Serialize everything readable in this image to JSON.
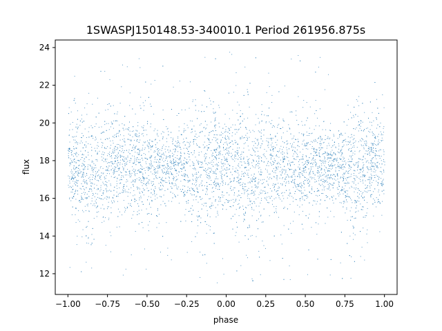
{
  "chart_data": {
    "type": "scatter",
    "title": "1SWASPJ150148.53-340010.1 Period 261956.875s",
    "xlabel": "phase",
    "ylabel": "flux",
    "xlim": [
      -1.08,
      1.08
    ],
    "ylim": [
      10.9,
      24.4
    ],
    "xticks": [
      -1.0,
      -0.75,
      -0.5,
      -0.25,
      0.0,
      0.25,
      0.5,
      0.75,
      1.0
    ],
    "xtick_labels": [
      "−1.00",
      "−0.75",
      "−0.50",
      "−0.25",
      "0.00",
      "0.25",
      "0.50",
      "0.75",
      "1.00"
    ],
    "yticks": [
      12,
      14,
      16,
      18,
      20,
      22,
      24
    ],
    "ytick_labels": [
      "12",
      "14",
      "16",
      "18",
      "20",
      "22",
      "24"
    ],
    "grid": false,
    "marker_color": "#1f77b4",
    "series": [
      {
        "x_range": [
          -1.0,
          1.0
        ],
        "y_center": 17.8,
        "y_spread": 1.2,
        "y_min": 11.5,
        "y_max": 23.8,
        "phase_profile": [
          {
            "x": -1.0,
            "y_low": 15.3,
            "y_high": 20.0
          },
          {
            "x": -0.85,
            "y_low": 13.5,
            "y_high": 21.0
          },
          {
            "x": -0.7,
            "y_low": 15.5,
            "y_high": 20.3
          },
          {
            "x": -0.5,
            "y_low": 14.5,
            "y_high": 20.5
          },
          {
            "x": -0.3,
            "y_low": 16.0,
            "y_high": 19.5
          },
          {
            "x": -0.2,
            "y_low": 13.5,
            "y_high": 21.0
          },
          {
            "x": -0.05,
            "y_low": 15.5,
            "y_high": 20.5
          },
          {
            "x": 0.15,
            "y_low": 13.5,
            "y_high": 21.0
          },
          {
            "x": 0.3,
            "y_low": 15.5,
            "y_high": 20.3
          },
          {
            "x": 0.5,
            "y_low": 14.5,
            "y_high": 20.5
          },
          {
            "x": 0.7,
            "y_low": 16.0,
            "y_high": 19.5
          },
          {
            "x": 0.8,
            "y_low": 13.5,
            "y_high": 21.0
          },
          {
            "x": 0.95,
            "y_low": 15.5,
            "y_high": 20.5
          },
          {
            "x": 1.0,
            "y_low": 15.3,
            "y_high": 20.0
          }
        ]
      }
    ]
  }
}
